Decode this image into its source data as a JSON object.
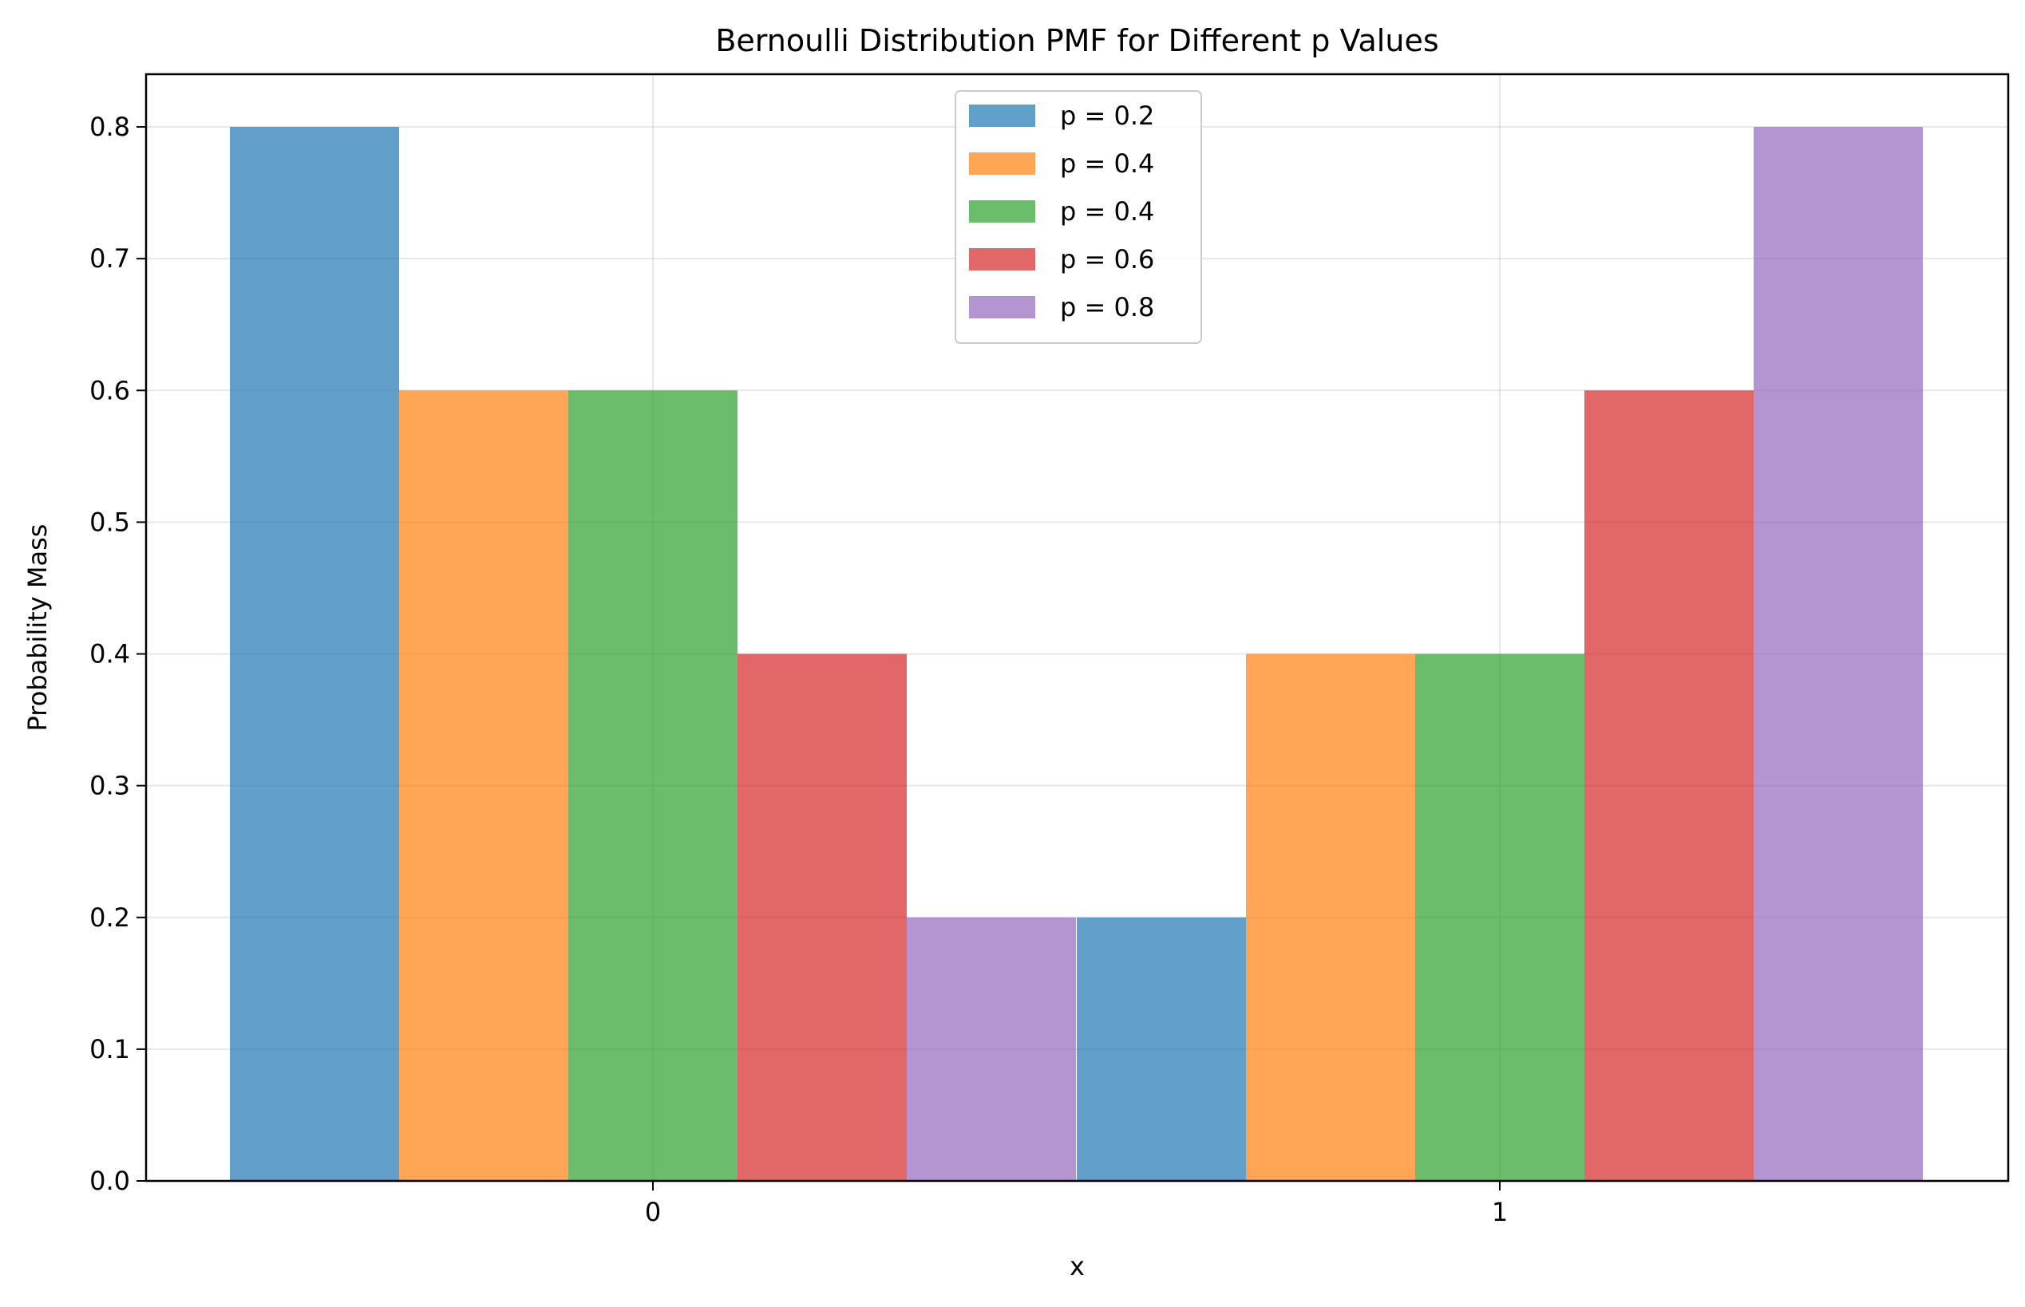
{
  "chart_data": {
    "type": "bar",
    "title": "Bernoulli Distribution PMF for Different p Values",
    "xlabel": "x",
    "ylabel": "Probability Mass",
    "categories": [
      "0",
      "1"
    ],
    "ylim": [
      0,
      0.84
    ],
    "yticks": [
      "0.0",
      "0.1",
      "0.2",
      "0.3",
      "0.4",
      "0.5",
      "0.6",
      "0.7",
      "0.8"
    ],
    "grid": true,
    "legend_position": "top-center",
    "bar_opacity": 0.7,
    "series": [
      {
        "name": "p = 0.2",
        "color": "#1f77b4",
        "values": [
          0.8,
          0.2
        ]
      },
      {
        "name": "p = 0.4",
        "color": "#ff7f0e",
        "values": [
          0.6,
          0.4
        ]
      },
      {
        "name": "p = 0.4",
        "color": "#2ca02c",
        "values": [
          0.6,
          0.4
        ]
      },
      {
        "name": "p = 0.6",
        "color": "#d62728",
        "values": [
          0.4,
          0.6
        ]
      },
      {
        "name": "p = 0.8",
        "color": "#9467bd",
        "values": [
          0.2,
          0.8
        ]
      }
    ]
  }
}
